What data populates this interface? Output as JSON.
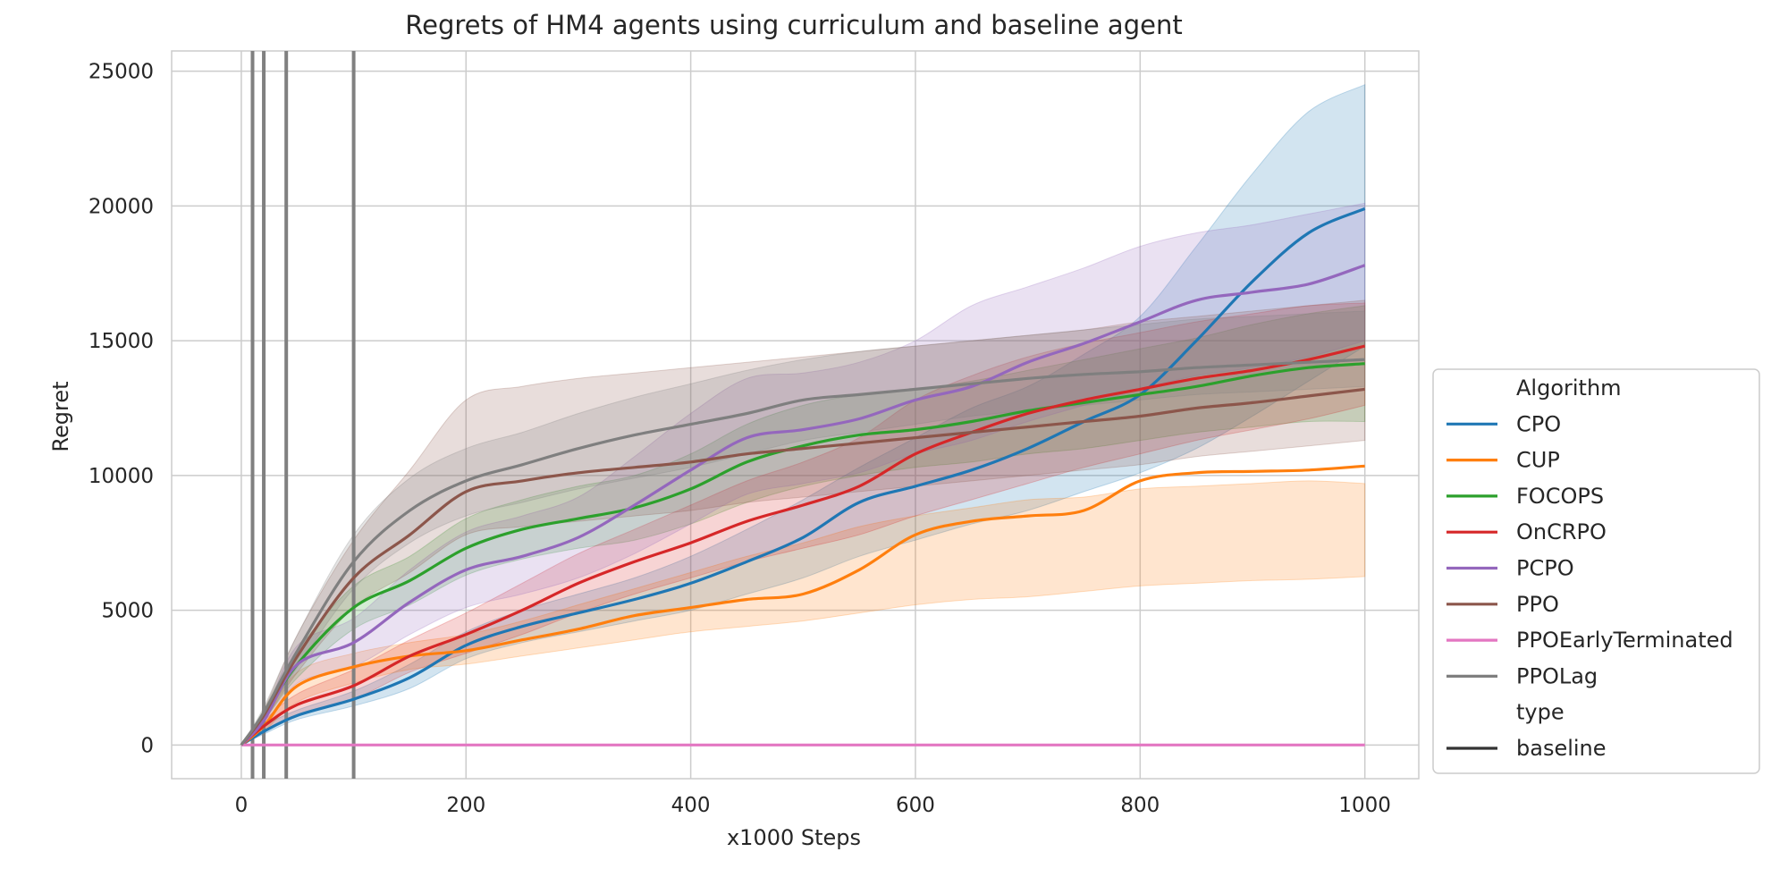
{
  "chart_data": {
    "type": "line",
    "title": "Regrets of HM4 agents using curriculum and baseline agent",
    "xlabel": "x1000 Steps",
    "ylabel": "Regret",
    "xlim": [
      -62,
      1048
    ],
    "ylim": [
      -1250,
      25750
    ],
    "xticks": [
      0,
      200,
      400,
      600,
      800,
      1000
    ],
    "yticks": [
      0,
      5000,
      10000,
      15000,
      20000,
      25000
    ],
    "grid": true,
    "vertical_lines": [
      10,
      20,
      40,
      100
    ],
    "legend": {
      "placement": "right",
      "sections": [
        {
          "title": "Algorithm",
          "entries": [
            "CPO",
            "CUP",
            "FOCOPS",
            "OnCRPO",
            "PCPO",
            "PPO",
            "PPOEarlyTerminated",
            "PPOLag"
          ]
        },
        {
          "title": "type",
          "entries": [
            "baseline"
          ]
        }
      ]
    },
    "colors": {
      "CPO": "#1f77b4",
      "CUP": "#ff7f0e",
      "FOCOPS": "#2ca02c",
      "OnCRPO": "#d62728",
      "PCPO": "#9467bd",
      "PPO": "#8c564b",
      "PPOEarlyTerminated": "#e377c2",
      "PPOLag": "#7f7f7f",
      "baseline": "#333333"
    },
    "x": [
      0,
      20,
      50,
      100,
      150,
      200,
      250,
      300,
      350,
      400,
      450,
      500,
      550,
      600,
      650,
      700,
      750,
      800,
      850,
      900,
      950,
      1000
    ],
    "series": [
      {
        "name": "CPO",
        "values": [
          0,
          500,
          1100,
          1700,
          2500,
          3700,
          4400,
          4900,
          5400,
          6000,
          6800,
          7700,
          9000,
          9600,
          10200,
          11000,
          12000,
          13000,
          15000,
          17200,
          19000,
          19900
        ],
        "lower": [
          0,
          400,
          950,
          1450,
          2100,
          3200,
          3800,
          4200,
          4600,
          5000,
          5600,
          6200,
          7000,
          7600,
          8200,
          8700,
          9400,
          10100,
          11000,
          12200,
          13500,
          14800
        ],
        "upper": [
          0,
          700,
          1300,
          2000,
          3000,
          4200,
          5000,
          5600,
          6200,
          7000,
          8000,
          9100,
          10300,
          11400,
          12500,
          13300,
          14500,
          15900,
          18500,
          21200,
          23500,
          24500
        ]
      },
      {
        "name": "CUP",
        "values": [
          0,
          700,
          2200,
          2900,
          3300,
          3500,
          3900,
          4300,
          4800,
          5100,
          5400,
          5600,
          6500,
          7800,
          8300,
          8500,
          8700,
          9800,
          10100,
          10150,
          10200,
          10350
        ],
        "lower": [
          0,
          500,
          1600,
          2300,
          2800,
          3000,
          3300,
          3600,
          3900,
          4200,
          4400,
          4600,
          4900,
          5200,
          5400,
          5500,
          5700,
          5900,
          6000,
          6100,
          6150,
          6250
        ],
        "upper": [
          0,
          900,
          2700,
          3400,
          3800,
          4100,
          4600,
          5200,
          5800,
          6400,
          7000,
          7500,
          8100,
          8500,
          8800,
          9100,
          9200,
          9500,
          9600,
          9700,
          9800,
          9700
        ]
      },
      {
        "name": "FOCOPS",
        "values": [
          0,
          1100,
          3000,
          5100,
          6100,
          7300,
          8000,
          8400,
          8800,
          9500,
          10500,
          11100,
          11500,
          11700,
          12000,
          12400,
          12700,
          13000,
          13300,
          13700,
          14000,
          14150
        ],
        "lower": [
          0,
          900,
          2500,
          4300,
          5200,
          6300,
          6900,
          7300,
          7600,
          8200,
          9000,
          9600,
          10000,
          10300,
          10500,
          10800,
          11000,
          11300,
          11600,
          11800,
          12000,
          12000
        ],
        "upper": [
          0,
          1300,
          3500,
          5900,
          7000,
          8400,
          9100,
          9600,
          10000,
          10800,
          11900,
          12600,
          13000,
          13200,
          13500,
          13900,
          14300,
          14700,
          15100,
          15600,
          16000,
          16300
        ]
      },
      {
        "name": "OnCRPO",
        "values": [
          0,
          700,
          1500,
          2200,
          3300,
          4100,
          5000,
          6000,
          6800,
          7500,
          8300,
          8900,
          9600,
          10800,
          11600,
          12300,
          12800,
          13200,
          13600,
          13900,
          14300,
          14800
        ],
        "lower": [
          0,
          500,
          1100,
          1700,
          2700,
          3400,
          4100,
          4900,
          5600,
          6200,
          6800,
          7300,
          7800,
          8500,
          9100,
          9700,
          10300,
          10800,
          11300,
          11700,
          12100,
          12600
        ],
        "upper": [
          0,
          900,
          1900,
          2800,
          3900,
          4900,
          6000,
          7100,
          8000,
          8900,
          9800,
          10500,
          11400,
          12800,
          13700,
          14400,
          14900,
          15300,
          15700,
          16000,
          16300,
          16400
        ]
      },
      {
        "name": "PCPO",
        "values": [
          0,
          900,
          3000,
          3800,
          5300,
          6500,
          7000,
          7700,
          8900,
          10200,
          11400,
          11700,
          12100,
          12800,
          13300,
          14200,
          14900,
          15700,
          16500,
          16800,
          17100,
          17800
        ],
        "lower": [
          0,
          700,
          2300,
          2900,
          4100,
          5100,
          5600,
          6200,
          7100,
          8200,
          9300,
          9700,
          10100,
          10800,
          11300,
          12000,
          12600,
          13200,
          13700,
          14000,
          14400,
          15000
        ],
        "upper": [
          0,
          1100,
          3700,
          4700,
          6500,
          7900,
          8500,
          9200,
          10700,
          12300,
          13600,
          13800,
          14200,
          15000,
          16300,
          17000,
          17700,
          18500,
          19000,
          19300,
          19700,
          20100
        ]
      },
      {
        "name": "PPO",
        "values": [
          0,
          1100,
          3300,
          6200,
          7800,
          9400,
          9800,
          10100,
          10300,
          10500,
          10800,
          11000,
          11200,
          11400,
          11600,
          11800,
          12000,
          12200,
          12500,
          12700,
          12950,
          13200
        ],
        "lower": [
          0,
          900,
          2700,
          5100,
          6400,
          7800,
          8100,
          8300,
          8500,
          8700,
          9000,
          9200,
          9400,
          9600,
          9800,
          10000,
          10200,
          10400,
          10700,
          10900,
          11100,
          11300
        ],
        "upper": [
          0,
          1300,
          4100,
          7600,
          10200,
          12800,
          13300,
          13600,
          13800,
          14000,
          14200,
          14400,
          14600,
          14800,
          15000,
          15200,
          15400,
          15700,
          15900,
          16100,
          16300,
          16500
        ]
      },
      {
        "name": "PPOEarlyTerminated",
        "values": [
          0,
          0,
          0,
          0,
          0,
          0,
          0,
          0,
          0,
          0,
          0,
          0,
          0,
          0,
          0,
          0,
          0,
          0,
          0,
          0,
          0,
          0
        ],
        "lower": [
          0,
          0,
          0,
          0,
          0,
          0,
          0,
          0,
          0,
          0,
          0,
          0,
          0,
          0,
          0,
          0,
          0,
          0,
          0,
          0,
          0,
          0
        ],
        "upper": [
          0,
          0,
          0,
          0,
          0,
          0,
          0,
          0,
          0,
          0,
          0,
          0,
          0,
          0,
          0,
          0,
          0,
          0,
          0,
          0,
          0,
          0
        ]
      },
      {
        "name": "PPOLag",
        "values": [
          0,
          1200,
          3500,
          6800,
          8700,
          9800,
          10400,
          11000,
          11500,
          11900,
          12300,
          12800,
          13000,
          13200,
          13400,
          13600,
          13750,
          13850,
          14000,
          14100,
          14200,
          14300
        ],
        "lower": [
          0,
          1000,
          2900,
          5800,
          7500,
          8500,
          9000,
          9500,
          9900,
          10300,
          10800,
          11300,
          11600,
          11900,
          12200,
          12400,
          12600,
          12800,
          13000,
          13100,
          13200,
          13300
        ],
        "upper": [
          0,
          1400,
          4100,
          7800,
          9900,
          11000,
          11600,
          12300,
          12900,
          13400,
          13900,
          14300,
          14600,
          14800,
          15000,
          15200,
          15400,
          15600,
          15800,
          15900,
          16000,
          16100
        ]
      }
    ]
  }
}
